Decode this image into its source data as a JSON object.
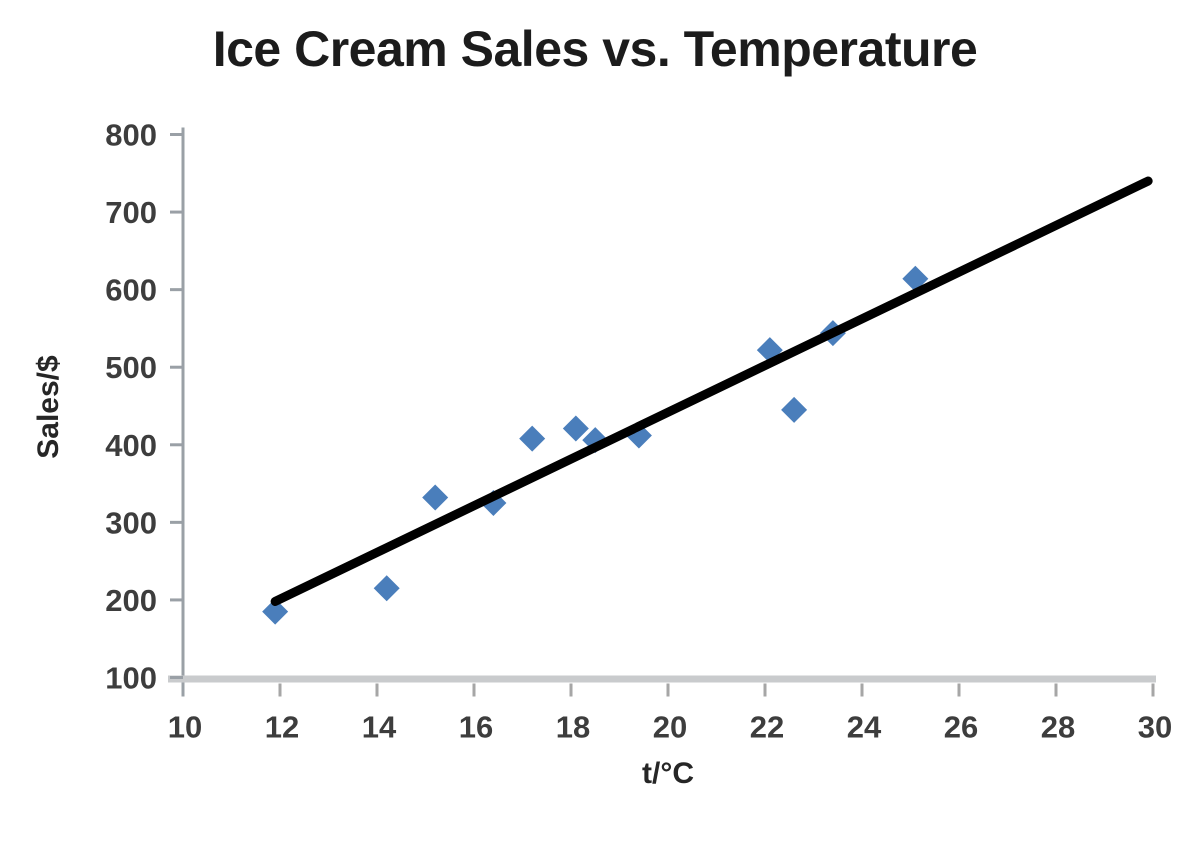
{
  "page": {
    "background": "#ffffff"
  },
  "chart_data": {
    "type": "scatter",
    "title": "Ice Cream Sales vs. Temperature",
    "xlabel": "t/°C",
    "ylabel": "Sales/$",
    "xlim": [
      10,
      30
    ],
    "ylim": [
      100,
      800
    ],
    "x_ticks": [
      10,
      12,
      14,
      16,
      18,
      20,
      22,
      24,
      26,
      28,
      30
    ],
    "y_ticks": [
      100,
      200,
      300,
      400,
      500,
      600,
      700,
      800
    ],
    "grid": false,
    "legend": null,
    "marker": "diamond",
    "series": [
      {
        "name": "Ice Cream Sales",
        "points": [
          {
            "x": 11.9,
            "y": 185
          },
          {
            "x": 14.2,
            "y": 215
          },
          {
            "x": 15.2,
            "y": 332
          },
          {
            "x": 16.4,
            "y": 325
          },
          {
            "x": 17.2,
            "y": 408
          },
          {
            "x": 18.1,
            "y": 421
          },
          {
            "x": 18.5,
            "y": 406
          },
          {
            "x": 19.4,
            "y": 412
          },
          {
            "x": 22.1,
            "y": 522
          },
          {
            "x": 22.6,
            "y": 445
          },
          {
            "x": 23.4,
            "y": 544
          },
          {
            "x": 25.1,
            "y": 614
          }
        ]
      }
    ],
    "trendline": {
      "x1": 11.9,
      "y1": 198,
      "x2": 29.9,
      "y2": 740
    },
    "colors": {
      "point": "#4a7ebb",
      "trendline": "#000000",
      "title_text": "#1c1c1c",
      "axis_label_text": "#262626",
      "tick_text": "#3d3d3d",
      "axis_line": "#9aa0a6",
      "tick_mark": "#a6a6a6",
      "baseline": "#c9cbcd"
    }
  }
}
